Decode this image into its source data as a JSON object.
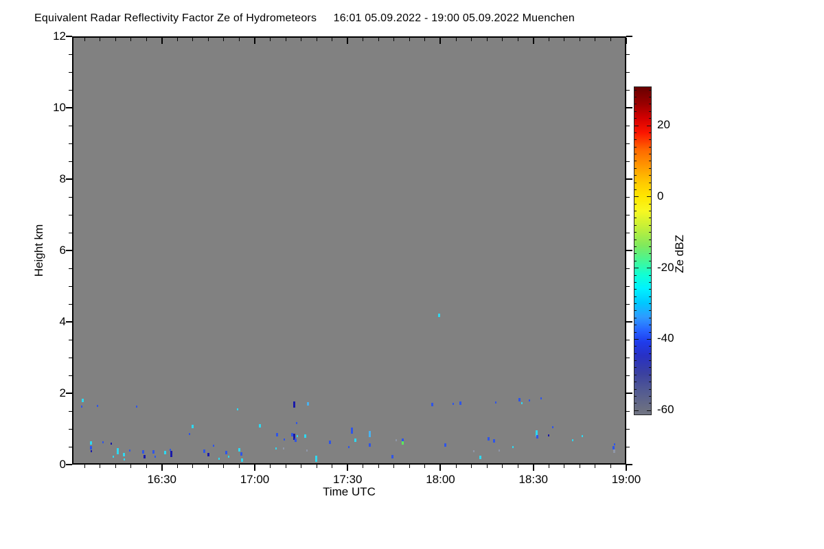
{
  "header": {
    "title": "Equivalent Radar Reflectivity Factor Ze of Hydrometeors",
    "subtitle": "16:01 05.09.2022 - 19:00 05.09.2022 Muenchen"
  },
  "chart_data": {
    "type": "heatmap",
    "title": "Equivalent Radar Reflectivity Factor Ze of Hydrometeors 16:01 05.09.2022 - 19:00 05.09.2022 Muenchen",
    "xlabel": "Time UTC",
    "ylabel": "Height km",
    "x_start_time": "16:01",
    "x_end_time": "19:00",
    "x_range_minutes_after_1600": [
      1,
      180
    ],
    "x_tick_labels": [
      "16:30",
      "17:00",
      "17:30",
      "18:00",
      "18:30",
      "19:00"
    ],
    "x_tick_minutes": [
      30,
      60,
      90,
      120,
      150,
      180
    ],
    "x_minor_step_minutes": 5,
    "ylim": [
      0,
      12
    ],
    "y_tick_labels": [
      "0",
      "2",
      "4",
      "6",
      "8",
      "10",
      "12"
    ],
    "y_tick_values": [
      0,
      2,
      4,
      6,
      8,
      10,
      12
    ],
    "y_minor_step_km": 0.5,
    "grid": false,
    "legend_position": "right-colorbar",
    "plot_background_color": "#818181",
    "frame_color": "#000000",
    "colorbar": {
      "label": "Ze dBZ",
      "tick_labels": [
        "20",
        "0",
        "-20",
        "-40",
        "-60"
      ],
      "tick_values": [
        20,
        0,
        -20,
        -40,
        -60
      ],
      "value_range": [
        -61.5,
        30.8
      ],
      "gradient_stops": [
        {
          "v": 30.8,
          "c": "#680000"
        },
        {
          "v": 26,
          "c": "#9b0000"
        },
        {
          "v": 22,
          "c": "#d40000"
        },
        {
          "v": 18,
          "c": "#fb1500"
        },
        {
          "v": 13,
          "c": "#ff6a00"
        },
        {
          "v": 8,
          "c": "#ff9e00"
        },
        {
          "v": 4,
          "c": "#ffc800"
        },
        {
          "v": 0,
          "c": "#ffe600"
        },
        {
          "v": -4,
          "c": "#f8f820"
        },
        {
          "v": -9,
          "c": "#c0ef3a"
        },
        {
          "v": -14,
          "c": "#7ee95e"
        },
        {
          "v": -18,
          "c": "#46f695"
        },
        {
          "v": -22,
          "c": "#12ffd2"
        },
        {
          "v": -26,
          "c": "#00f2ff"
        },
        {
          "v": -30,
          "c": "#00c8ff"
        },
        {
          "v": -34,
          "c": "#2e9bff"
        },
        {
          "v": -38,
          "c": "#2761ff"
        },
        {
          "v": -41,
          "c": "#1f3cec"
        },
        {
          "v": -45,
          "c": "#2831c4"
        },
        {
          "v": -50,
          "c": "#3b41a0"
        },
        {
          "v": -55,
          "c": "#535b92"
        },
        {
          "v": -60,
          "c": "#6b6f82"
        },
        {
          "v": -61.5,
          "c": "#717584"
        }
      ]
    },
    "point_colors": {
      "cyan": "#2fd8f0",
      "lightblue": "#49b2f0",
      "blue": "#2f55e8",
      "darkblue": "#1a1aa8",
      "green": "#5ce85c",
      "gray": "#8f97a8"
    },
    "points_format": [
      "minutes_after_1600",
      "height_km",
      "color_key",
      "size_class"
    ],
    "points": [
      [
        4.4,
        1.79,
        "cyan",
        2
      ],
      [
        4.0,
        1.63,
        "blue",
        1
      ],
      [
        9.3,
        1.65,
        "blue",
        1
      ],
      [
        21.8,
        1.62,
        "blue",
        1
      ],
      [
        54.4,
        1.54,
        "cyan",
        1
      ],
      [
        7.1,
        0.6,
        "cyan",
        2
      ],
      [
        7.1,
        0.48,
        "blue",
        2
      ],
      [
        7.3,
        0.38,
        "darkblue",
        1
      ],
      [
        10.9,
        0.63,
        "blue",
        1
      ],
      [
        13.6,
        0.58,
        "darkblue",
        1
      ],
      [
        15.8,
        0.38,
        "cyan",
        3
      ],
      [
        17.8,
        0.27,
        "cyan",
        2
      ],
      [
        19.6,
        0.4,
        "blue",
        1
      ],
      [
        14.4,
        0.23,
        "cyan",
        1
      ],
      [
        17.8,
        0.15,
        "cyan",
        1
      ],
      [
        24.0,
        0.35,
        "blue",
        2
      ],
      [
        24.4,
        0.23,
        "darkblue",
        2
      ],
      [
        27.3,
        0.35,
        "blue",
        2
      ],
      [
        27.8,
        0.23,
        "blue",
        1
      ],
      [
        31.1,
        0.33,
        "cyan",
        2
      ],
      [
        32.7,
        0.42,
        "blue",
        1
      ],
      [
        33.1,
        0.29,
        "darkblue",
        3
      ],
      [
        40.0,
        1.06,
        "cyan",
        2
      ],
      [
        38.9,
        0.85,
        "blue",
        1
      ],
      [
        43.8,
        0.37,
        "blue",
        2
      ],
      [
        45.1,
        0.27,
        "darkblue",
        2
      ],
      [
        46.7,
        0.52,
        "blue",
        1
      ],
      [
        48.4,
        0.17,
        "cyan",
        1
      ],
      [
        50.7,
        0.33,
        "blue",
        2
      ],
      [
        51.6,
        0.23,
        "cyan",
        1
      ],
      [
        54.9,
        0.42,
        "cyan",
        2
      ],
      [
        55.6,
        0.29,
        "blue",
        2
      ],
      [
        56.0,
        0.13,
        "cyan",
        2
      ],
      [
        61.6,
        1.08,
        "cyan",
        2
      ],
      [
        72.7,
        1.69,
        "darkblue",
        3
      ],
      [
        77.1,
        1.71,
        "lightblue",
        2
      ],
      [
        73.6,
        1.17,
        "blue",
        1
      ],
      [
        67.3,
        0.83,
        "blue",
        2
      ],
      [
        69.6,
        0.71,
        "blue",
        1
      ],
      [
        72.0,
        0.83,
        "blue",
        2
      ],
      [
        72.7,
        0.77,
        "darkblue",
        3
      ],
      [
        73.3,
        0.69,
        "blue",
        2
      ],
      [
        73.8,
        0.79,
        "cyan",
        1
      ],
      [
        76.2,
        0.79,
        "cyan",
        2
      ],
      [
        66.9,
        0.46,
        "cyan",
        1
      ],
      [
        69.3,
        0.46,
        "gray",
        1
      ],
      [
        84.4,
        0.62,
        "blue",
        2
      ],
      [
        76.9,
        0.4,
        "gray",
        1
      ],
      [
        79.8,
        0.17,
        "cyan",
        3
      ],
      [
        91.3,
        0.96,
        "blue",
        3
      ],
      [
        92.4,
        0.69,
        "cyan",
        2
      ],
      [
        90.4,
        0.5,
        "blue",
        1
      ],
      [
        97.1,
        0.85,
        "lightblue",
        3
      ],
      [
        97.1,
        0.54,
        "blue",
        2
      ],
      [
        105.6,
        0.69,
        "gray",
        1
      ],
      [
        107.8,
        0.69,
        "blue",
        2
      ],
      [
        107.8,
        0.6,
        "green",
        2
      ],
      [
        104.4,
        0.23,
        "blue",
        2
      ],
      [
        119.6,
        4.19,
        "cyan",
        2
      ],
      [
        117.3,
        1.69,
        "blue",
        2
      ],
      [
        124.0,
        1.71,
        "blue",
        1
      ],
      [
        126.4,
        1.73,
        "blue",
        2
      ],
      [
        137.8,
        1.75,
        "blue",
        1
      ],
      [
        145.6,
        1.81,
        "blue",
        2
      ],
      [
        146.2,
        1.73,
        "cyan",
        1
      ],
      [
        148.7,
        1.79,
        "blue",
        1
      ],
      [
        152.4,
        1.85,
        "blue",
        1
      ],
      [
        156.2,
        1.04,
        "blue",
        1
      ],
      [
        151.1,
        0.87,
        "cyan",
        3
      ],
      [
        151.3,
        0.77,
        "blue",
        2
      ],
      [
        154.9,
        0.81,
        "darkblue",
        1
      ],
      [
        135.6,
        0.73,
        "blue",
        2
      ],
      [
        137.3,
        0.67,
        "blue",
        2
      ],
      [
        162.7,
        0.69,
        "cyan",
        1
      ],
      [
        165.8,
        0.79,
        "cyan",
        1
      ],
      [
        121.6,
        0.54,
        "blue",
        2
      ],
      [
        130.7,
        0.38,
        "gray",
        1
      ],
      [
        138.9,
        0.4,
        "gray",
        1
      ],
      [
        143.3,
        0.5,
        "cyan",
        1
      ],
      [
        132.9,
        0.21,
        "cyan",
        2
      ],
      [
        176.0,
        0.48,
        "blue",
        2
      ],
      [
        176.2,
        0.37,
        "gray",
        2
      ],
      [
        176.2,
        0.56,
        "blue",
        1
      ]
    ]
  }
}
